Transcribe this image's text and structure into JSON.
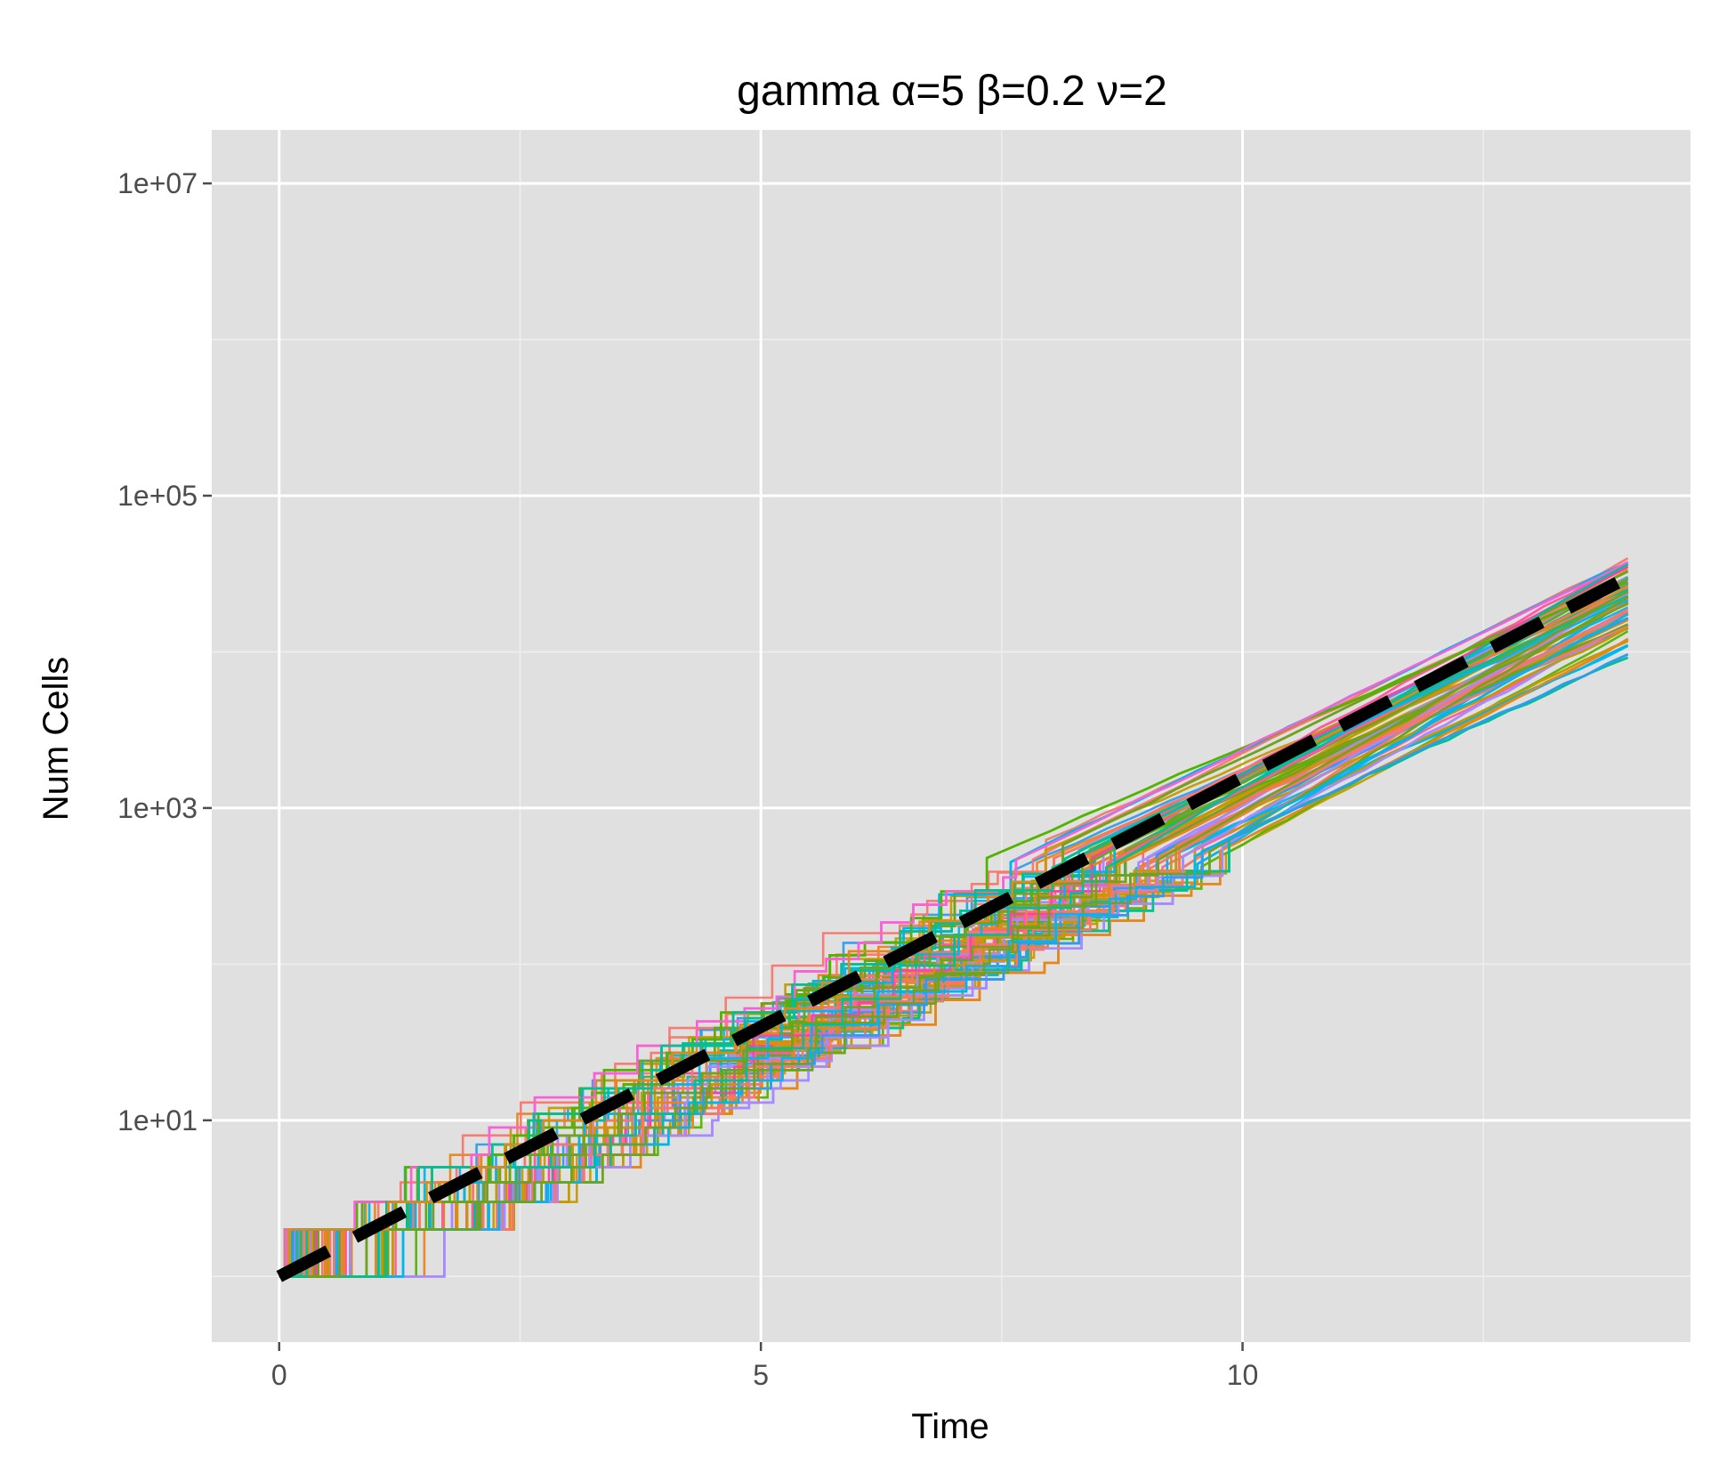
{
  "chart_data": {
    "type": "line",
    "title": "gamma α=5 β=0.2 ν=2",
    "xlabel": "Time",
    "ylabel": "Num Cells",
    "x_scale": "linear",
    "y_scale": "log10",
    "xlim": [
      -0.7,
      14.65
    ],
    "ylim": [
      0.38,
      22000000
    ],
    "x_ticks": [
      {
        "value": 0,
        "label": "0"
      },
      {
        "value": 5,
        "label": "5"
      },
      {
        "value": 10,
        "label": "10"
      }
    ],
    "y_ticks": [
      {
        "value": 10,
        "label": "1e+01"
      },
      {
        "value": 1000,
        "label": "1e+03"
      },
      {
        "value": 100000,
        "label": "1e+05"
      },
      {
        "value": 10000000,
        "label": "1e+07"
      }
    ],
    "grid": true,
    "background": "#e0e0e0",
    "legend": "none",
    "simulated_trajectories": {
      "count": 150,
      "start": {
        "x": 0,
        "y": 1
      },
      "end_x": 14,
      "end_y_range": [
        6000,
        70000
      ],
      "step_like_until_x": 4,
      "palette": [
        "#f8766d",
        "#c49a00",
        "#53b400",
        "#00c094",
        "#00b6eb",
        "#a58aff",
        "#fb61d7",
        "#ff3fa4",
        "#ff5aa0",
        "#e7861b",
        "#2d9cf0",
        "#6fa31b"
      ]
    },
    "series": [
      {
        "x": [
          0,
          14
        ],
        "y": [
          1,
          30000
        ],
        "style": "dashed",
        "color": "#000000"
      }
    ]
  }
}
